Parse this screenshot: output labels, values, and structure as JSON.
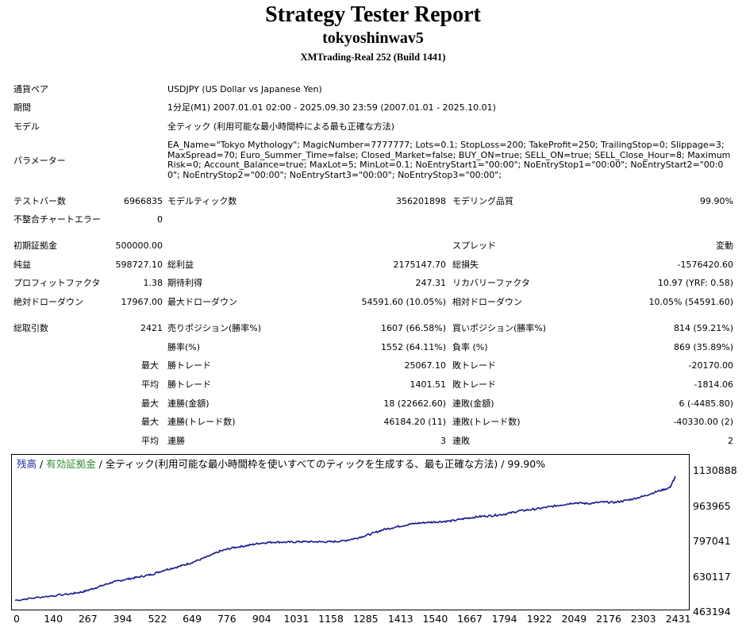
{
  "report": {
    "title": "Strategy Tester Report",
    "subtitle": "tokyoshinwav5",
    "account": "XMTrading-Real 252 (Build 1441)"
  },
  "info": {
    "symbol_label": "通貨ペア",
    "symbol_value": "USDJPY (US Dollar vs Japanese Yen)",
    "period_label": "期間",
    "period_value": "1分足(M1) 2007.01.01 02:00 - 2025.09.30 23:59 (2007.01.01 - 2025.10.01)",
    "model_label": "モデル",
    "model_value": "全ティック (利用可能な最小時間枠による最も正確な方法)",
    "params_label": "パラメーター",
    "params_value": "EA_Name=\"Tokyo Mythology\"; MagicNumber=7777777; Lots=0.1; StopLoss=200; TakeProfit=250; TrailingStop=0; Slippage=3; MaxSpread=70; Euro_Summer_Time=false; Closed_Market=false; BUY_ON=true; SELL_ON=true; SELL_Close_Hour=8; MaximumRisk=0; Account_Balance=true; MaxLot=5; MinLot=0.1; NoEntryStart1=\"00:00\"; NoEntryStop1=\"00:00\"; NoEntryStart2=\"00:00\"; NoEntryStop2=\"00:00\"; NoEntryStart3=\"00:00\"; NoEntryStop3=\"00:00\";"
  },
  "stats": {
    "bars_label": "テストバー数",
    "bars_value": "6966835",
    "ticks_label": "モデルティック数",
    "ticks_value": "356201898",
    "quality_label": "モデリング品質",
    "quality_value": "99.90%",
    "mismatch_label": "不整合チャートエラー",
    "mismatch_value": "0",
    "deposit_label": "初期証拠金",
    "deposit_value": "500000.00",
    "spread_label": "スプレッド",
    "spread_value": "変動",
    "net_label": "純益",
    "net_value": "598727.10",
    "gross_profit_label": "総利益",
    "gross_profit_value": "2175147.70",
    "gross_loss_label": "総損失",
    "gross_loss_value": "-1576420.60",
    "pf_label": "プロフィットファクタ",
    "pf_value": "1.38",
    "expected_label": "期待利得",
    "expected_value": "247.31",
    "recovery_label": "リカバリーファクタ",
    "recovery_value": "10.97 (YRF: 0.58)",
    "abs_dd_label": "絶対ドローダウン",
    "abs_dd_value": "17967.00",
    "max_dd_label": "最大ドローダウン",
    "max_dd_value": "54591.60 (10.05%)",
    "rel_dd_label": "相対ドローダウン",
    "rel_dd_value": "10.05% (54591.60)",
    "trades_label": "総取引数",
    "trades_value": "2421",
    "short_label": "売りポジション(勝率%)",
    "short_value": "1607 (66.58%)",
    "long_label": "買いポジション(勝率%)",
    "long_value": "814 (59.21%)",
    "winrate_label": "勝率(%)",
    "winrate_value": "1552 (64.11%)",
    "lossrate_label": "負率 (%)",
    "lossrate_value": "869 (35.89%)",
    "max_label": "最大",
    "avg_label": "平均",
    "largest_win_label": "勝トレード",
    "largest_win_value": "25067.10",
    "largest_loss_label": "敗トレード",
    "largest_loss_value": "-20170.00",
    "avg_win_label": "勝トレード",
    "avg_win_value": "1401.51",
    "avg_loss_label": "敗トレード",
    "avg_loss_value": "-1814.06",
    "cons_win_label": "連勝(金額)",
    "cons_win_value": "18 (22662.60)",
    "cons_loss_label": "連敗(金額)",
    "cons_loss_value": "6 (-4485.80)",
    "cons_profit_label": "連勝(トレード数)",
    "cons_profit_value": "46184.20 (11)",
    "cons_lossamt_label": "連敗(トレード数)",
    "cons_lossamt_value": "-40330.00 (2)",
    "avg_cons_win_label": "連勝",
    "avg_cons_win_value": "3",
    "avg_cons_loss_label": "連敗",
    "avg_cons_loss_value": "2"
  },
  "chart_data": {
    "type": "line",
    "legend": {
      "balance": "残高",
      "sep1": " / ",
      "equity": "有効証拠金",
      "sep2": " / ",
      "rest": "全ティック(利用可能な最小時間枠を使いすべてのティックを生成する、最も正確な方法) / 99.90%"
    },
    "colors": {
      "balance": "#1a2a9c",
      "equity": "#2e8b2e",
      "line": "#1a1a8c"
    },
    "y_ticks": [
      "1130888",
      "963965",
      "797041",
      "630117",
      "463194"
    ],
    "x_ticks": [
      "0",
      "140",
      "267",
      "394",
      "522",
      "649",
      "776",
      "904",
      "1031",
      "1158",
      "1285",
      "1413",
      "1540",
      "1667",
      "1794",
      "1922",
      "2049",
      "2176",
      "2303",
      "2431"
    ],
    "ylim": [
      463194,
      1130888
    ],
    "xlim": [
      0,
      2464
    ],
    "series": [
      {
        "name": "残高",
        "x": [
          0,
          100,
          200,
          250,
          300,
          350,
          400,
          450,
          500,
          550,
          600,
          650,
          700,
          750,
          800,
          850,
          900,
          950,
          1000,
          1050,
          1100,
          1150,
          1200,
          1250,
          1300,
          1350,
          1400,
          1450,
          1500,
          1550,
          1600,
          1650,
          1700,
          1750,
          1800,
          1850,
          1900,
          1950,
          2000,
          2050,
          2100,
          2150,
          2200,
          2250,
          2300,
          2350,
          2400,
          2421
        ],
        "y": [
          500000,
          517000,
          531000,
          542000,
          563000,
          585000,
          600000,
          612000,
          625000,
          648000,
          663000,
          684000,
          708000,
          737000,
          755000,
          765000,
          777000,
          782000,
          781000,
          784000,
          783000,
          783000,
          787000,
          800000,
          819000,
          842000,
          856000,
          869000,
          876000,
          880000,
          884000,
          896000,
          905000,
          910000,
          918000,
          933000,
          940000,
          950000,
          961000,
          972000,
          968000,
          975000,
          974000,
          986000,
          1002000,
          1025000,
          1045000,
          1098727
        ]
      }
    ]
  }
}
